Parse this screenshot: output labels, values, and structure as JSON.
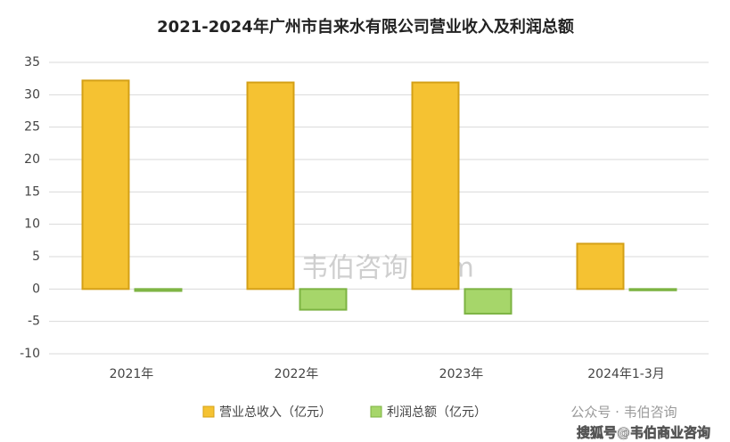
{
  "chart_data": {
    "type": "bar",
    "title": "2021-2024年广州市自来水有限公司营业收入及利润总额",
    "categories": [
      "2021年",
      "2022年",
      "2023年",
      "2024年1-3月"
    ],
    "series": [
      {
        "name": "营业总收入（亿元）",
        "color": "#f5c232",
        "values": [
          32.2,
          31.9,
          31.9,
          7.0
        ]
      },
      {
        "name": "利润总额（亿元）",
        "color": "#a6d66a",
        "values": [
          -0.3,
          -3.2,
          -3.8,
          -0.2
        ]
      }
    ],
    "ylim": [
      -10,
      35
    ],
    "yticks": [
      -10,
      -5,
      0,
      5,
      10,
      15,
      20,
      25,
      30,
      35
    ],
    "grid": true,
    "legend": "bottom",
    "watermarks": [
      "韦伯咨询.com",
      "公众号 · 韦伯咨询",
      "搜狐号@韦伯商业咨询"
    ]
  }
}
